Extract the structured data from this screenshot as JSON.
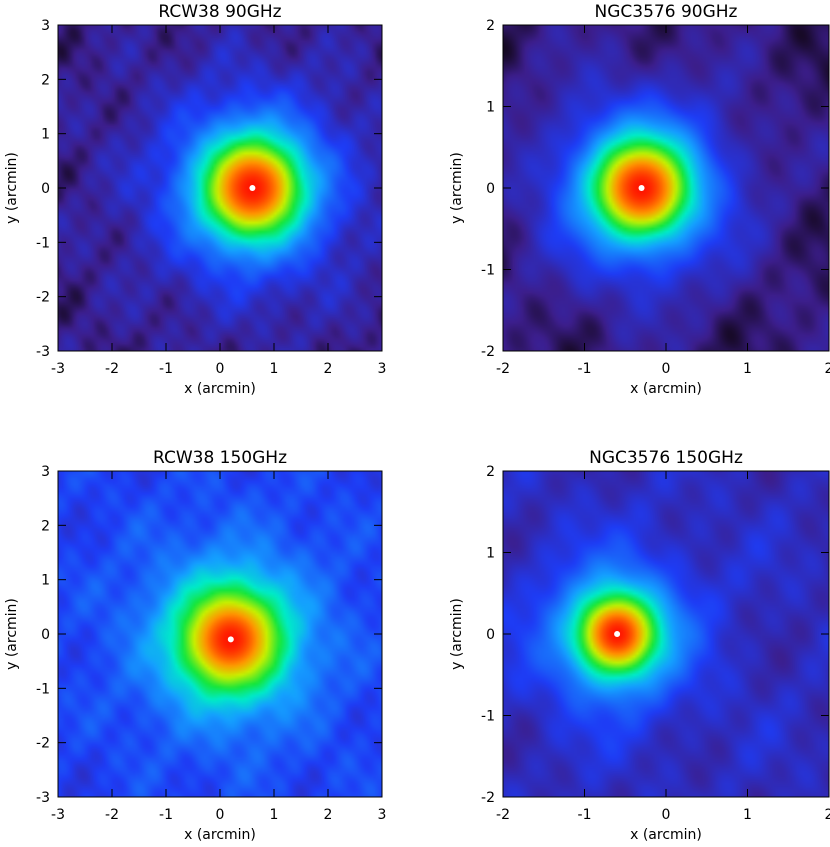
{
  "chart_data": [
    {
      "type": "heatmap",
      "title": "RCW38 90GHz",
      "xlabel": "x (arcmin)",
      "ylabel": "y (arcmin)",
      "xlim": [
        -3,
        3
      ],
      "ylim": [
        -3,
        3
      ],
      "xticks": [
        -3,
        -2,
        -1,
        0,
        1,
        2,
        3
      ],
      "yticks": [
        -3,
        -2,
        -1,
        0,
        1,
        2,
        3
      ],
      "colormap": "rainbow",
      "peak": {
        "x": 0.6,
        "y": 0.0
      },
      "source_fwhm_arcmin": 1.7,
      "background_level": 0.08,
      "colors": {
        "background": "#3a1e86",
        "peak": "#ff1a00"
      }
    },
    {
      "type": "heatmap",
      "title": "NGC3576 90GHz",
      "xlabel": "x (arcmin)",
      "ylabel": "y (arcmin)",
      "xlim": [
        -2,
        2
      ],
      "ylim": [
        -2,
        2
      ],
      "xticks": [
        -2,
        -1,
        0,
        1,
        2
      ],
      "yticks": [
        -2,
        -1,
        0,
        1,
        2
      ],
      "colormap": "rainbow",
      "peak": {
        "x": -0.3,
        "y": 0.0
      },
      "source_fwhm_arcmin": 1.1,
      "background_level": 0.06,
      "colors": {
        "background": "#2d1770",
        "peak": "#ff2a00"
      }
    },
    {
      "type": "heatmap",
      "title": "RCW38 150GHz",
      "xlabel": "x (arcmin)",
      "ylabel": "y (arcmin)",
      "xlim": [
        -3,
        3
      ],
      "ylim": [
        -3,
        3
      ],
      "xticks": [
        -3,
        -2,
        -1,
        0,
        1,
        2,
        3
      ],
      "yticks": [
        -3,
        -2,
        -1,
        0,
        1,
        2,
        3
      ],
      "colormap": "rainbow",
      "peak": {
        "x": 0.2,
        "y": -0.1
      },
      "source_fwhm_arcmin": 1.7,
      "background_level": 0.22,
      "colors": {
        "background": "#1f5cff",
        "peak": "#ff1a00"
      }
    },
    {
      "type": "heatmap",
      "title": "NGC3576 150GHz",
      "xlabel": "x (arcmin)",
      "ylabel": "y (arcmin)",
      "xlim": [
        -2,
        2
      ],
      "ylim": [
        -2,
        2
      ],
      "xticks": [
        -2,
        -1,
        0,
        1,
        2
      ],
      "yticks": [
        -2,
        -1,
        0,
        1,
        2
      ],
      "colormap": "rainbow",
      "peak": {
        "x": -0.6,
        "y": 0.0
      },
      "source_fwhm_arcmin": 0.9,
      "background_level": 0.14,
      "colors": {
        "background": "#1a2fd0",
        "peak": "#ff2a00"
      }
    }
  ]
}
